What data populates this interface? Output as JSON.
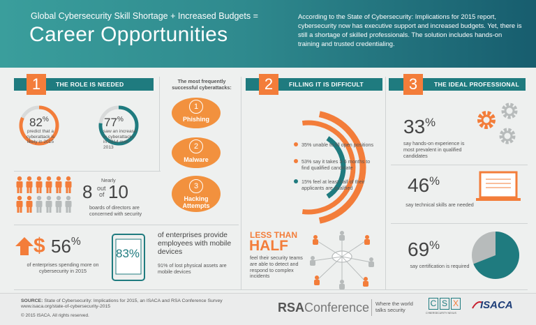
{
  "header": {
    "subtitle": "Global Cybersecurity Skill Shortage + Increased Budgets =",
    "title": "Career Opportunities",
    "intro": "According to the State of Cybersecurity: Implications for 2015 report, cybersecurity now has executive support and increased budgets. Yet, there is still a shortage of skilled professionals. The solution includes hands-on training and trusted credentialing."
  },
  "sections": [
    {
      "number": "1",
      "label": "THE ROLE IS NEEDED"
    },
    {
      "number": "2",
      "label": "FILLING IT IS DIFFICULT"
    },
    {
      "number": "3",
      "label": "THE IDEAL PROFESSIONAL"
    }
  ],
  "role": {
    "stat1": {
      "value": "82",
      "unit": "%",
      "caption": "predict that a cyberattack is likely in 2015",
      "fraction": 0.82
    },
    "stat2": {
      "value": "77",
      "unit": "%",
      "caption": "saw an increase in cyberattacks in 2014 over 2013",
      "fraction": 0.77
    },
    "boards": {
      "nearly": "Nearly",
      "num": "8",
      "out": "out",
      "of": "of",
      "den": "10",
      "caption": "boards of directors are concerned with security"
    },
    "spend": {
      "value": "56",
      "unit": "%",
      "symbol": "$",
      "caption": "of enterprises spending more on cybersecurity in 2015"
    }
  },
  "attacks": {
    "title": "The most frequently successful cyberattacks:",
    "items": [
      {
        "num": "1",
        "label": "Phishing"
      },
      {
        "num": "2",
        "label": "Malware"
      },
      {
        "num": "3",
        "label": "Hacking Attempts"
      }
    ]
  },
  "mobile": {
    "value": "83",
    "unit": "%",
    "headline": "of enterprises provide employees with mobile devices",
    "caption": "91% of lost physical assets are mobile devices"
  },
  "filling": {
    "arcs": [
      {
        "text": "35% unable to fill open positions",
        "fraction": 0.35,
        "color": "#f37d3a"
      },
      {
        "text": "53% say it takes 3-6 months to find qualified candidate",
        "fraction": 0.53,
        "color": "#f37d3a"
      },
      {
        "text": "15% feel at least half of their applicants are qualified",
        "fraction": 0.15,
        "color": "#1f7b7f"
      }
    ],
    "less_than": "LESS THAN",
    "half": "HALF",
    "caption": "feel their security teams are able to detect and respond to complex incidents"
  },
  "ideal": {
    "stat1": {
      "value": "33",
      "unit": "%",
      "caption": "say hands-on experience is most prevalent in qualified candidates"
    },
    "stat2": {
      "value": "46",
      "unit": "%",
      "caption": "say technical skills are needed"
    },
    "stat3": {
      "value": "69",
      "unit": "%",
      "caption": "say certification is required",
      "fraction": 0.69
    }
  },
  "footer": {
    "source_label": "SOURCE:",
    "source": "State of Cybersecurity: Implications for 2015, an ISACA and RSA Conference Survey",
    "url": "www.isaca.org/state-of-cybersecurity-2015",
    "copyright": "© 2015 ISACA. All rights reserved.",
    "rsa_bold": "RSA",
    "rsa_light": "Conference",
    "tagline": "Where the world talks security",
    "csx_letters": [
      "C",
      "S",
      "X"
    ],
    "csx_sub": "CYBERSECURITY NEXUS",
    "isaca": "ISACA"
  },
  "colors": {
    "orange": "#f37d3a",
    "teal": "#1f7b7f",
    "gray": "#b7bbbb"
  },
  "icons": [
    "dollar-arrow-icon",
    "person-icon",
    "tablet-icon",
    "network-icon",
    "gear-icon",
    "laptop-icon",
    "pie-icon"
  ]
}
